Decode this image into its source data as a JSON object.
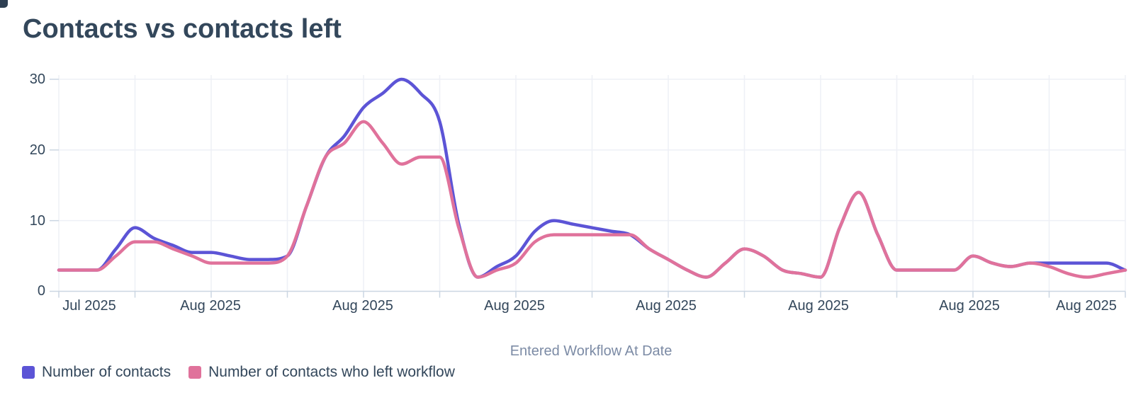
{
  "title": "Contacts vs contacts left",
  "chart_data": {
    "type": "line",
    "title": "Contacts vs contacts left",
    "xlabel": "Entered Workflow At Date",
    "ylabel": "",
    "x_tick_labels": [
      "Jul 2025",
      "Aug 2025",
      "Aug 2025",
      "Aug 2025",
      "Aug 2025",
      "Aug 2025",
      "Aug 2025",
      "Aug 2025"
    ],
    "y_tick_labels": [
      "30",
      "20",
      "10",
      "0"
    ],
    "ylim": [
      0,
      30
    ],
    "y_ticks": [
      0,
      10,
      20,
      30
    ],
    "grid": true,
    "legend_position": "bottom-left",
    "series": [
      {
        "name": "Number of contacts",
        "color": "#5C54D6",
        "values": [
          3,
          3,
          3,
          6,
          9,
          7.5,
          6.5,
          5.5,
          5.5,
          5,
          4.5,
          4.5,
          5,
          12,
          19,
          22,
          26,
          28,
          30,
          28,
          24,
          9.5,
          2,
          3.5,
          5,
          8.5,
          10,
          9.5,
          9,
          8.5,
          8,
          6,
          4.5,
          3,
          2,
          4,
          6,
          5,
          3,
          2.5,
          2,
          9,
          14,
          8,
          3,
          3,
          3,
          3,
          5,
          4,
          3.5,
          4,
          4,
          4,
          4,
          4,
          3
        ]
      },
      {
        "name": "Number of contacts who left workflow",
        "color": "#E0729B",
        "values": [
          3,
          3,
          3,
          5,
          7,
          7,
          6,
          5,
          4,
          4,
          4,
          4,
          5,
          12,
          19,
          21,
          24,
          21,
          18,
          19,
          19,
          9,
          2,
          3,
          4,
          7,
          8,
          8,
          8,
          8,
          8,
          6,
          4.5,
          3,
          2,
          4,
          6,
          5,
          3,
          2.5,
          2,
          9,
          14,
          8,
          3,
          3,
          3,
          3,
          5,
          4,
          3.5,
          4,
          3.5,
          2.5,
          2,
          2.5,
          3
        ]
      }
    ]
  }
}
